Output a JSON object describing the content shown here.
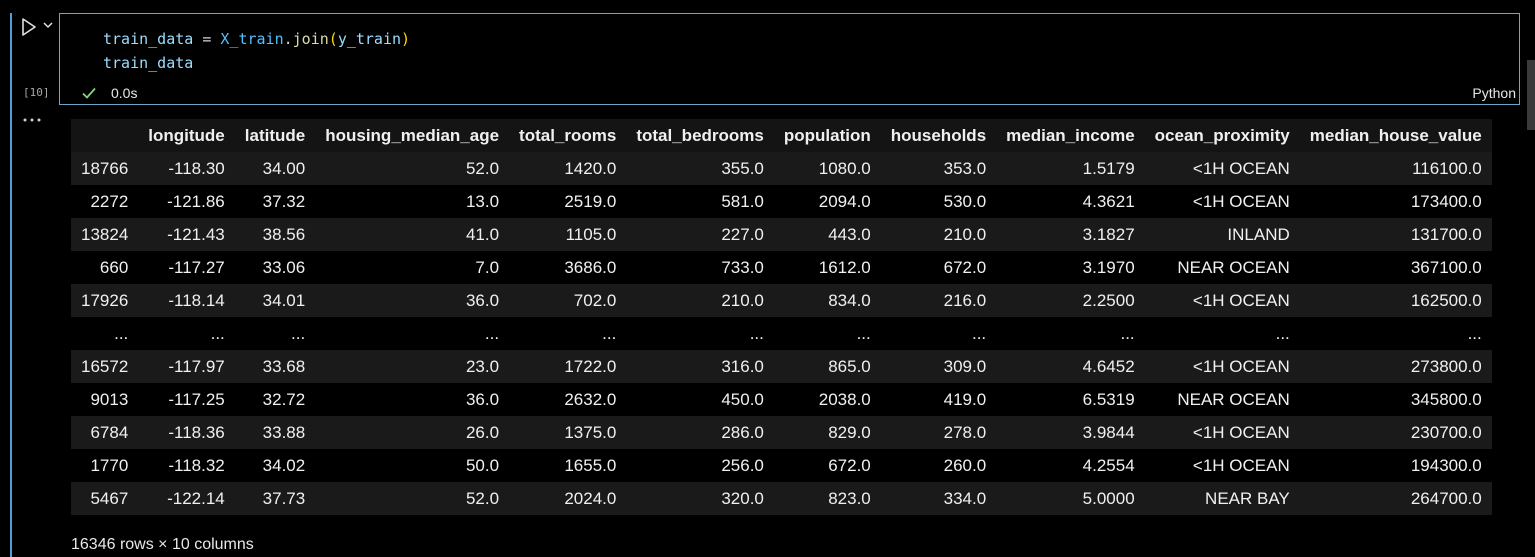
{
  "cell": {
    "execution_count": "[10]",
    "code_line1": {
      "var": "train_data",
      "op": " = ",
      "obj": "X_train",
      "dot": ".",
      "fn": "join",
      "open": "(",
      "arg": "y_train",
      "close": ")"
    },
    "code_line2": "train_data",
    "exec_time": "0.0s",
    "language": "Python"
  },
  "colors": {
    "focus": "#4f9fd8",
    "success": "#89d185",
    "cell_border": "#6aa7c8"
  },
  "icons": {
    "run": "play-icon",
    "run_menu": "chevron-down-icon",
    "status": "check-icon",
    "output_menu": "more-icon"
  },
  "table": {
    "columns": [
      "",
      "longitude",
      "latitude",
      "housing_median_age",
      "total_rooms",
      "total_bedrooms",
      "population",
      "households",
      "median_income",
      "ocean_proximity",
      "median_house_value"
    ],
    "rows": [
      [
        "18766",
        "-118.30",
        "34.00",
        "52.0",
        "1420.0",
        "355.0",
        "1080.0",
        "353.0",
        "1.5179",
        "<1H OCEAN",
        "116100.0"
      ],
      [
        "2272",
        "-121.86",
        "37.32",
        "13.0",
        "2519.0",
        "581.0",
        "2094.0",
        "530.0",
        "4.3621",
        "<1H OCEAN",
        "173400.0"
      ],
      [
        "13824",
        "-121.43",
        "38.56",
        "41.0",
        "1105.0",
        "227.0",
        "443.0",
        "210.0",
        "3.1827",
        "INLAND",
        "131700.0"
      ],
      [
        "660",
        "-117.27",
        "33.06",
        "7.0",
        "3686.0",
        "733.0",
        "1612.0",
        "672.0",
        "3.1970",
        "NEAR OCEAN",
        "367100.0"
      ],
      [
        "17926",
        "-118.14",
        "34.01",
        "36.0",
        "702.0",
        "210.0",
        "834.0",
        "216.0",
        "2.2500",
        "<1H OCEAN",
        "162500.0"
      ],
      [
        "...",
        "...",
        "...",
        "...",
        "...",
        "...",
        "...",
        "...",
        "...",
        "...",
        "..."
      ],
      [
        "16572",
        "-117.97",
        "33.68",
        "23.0",
        "1722.0",
        "316.0",
        "865.0",
        "309.0",
        "4.6452",
        "<1H OCEAN",
        "273800.0"
      ],
      [
        "9013",
        "-117.25",
        "32.72",
        "36.0",
        "2632.0",
        "450.0",
        "2038.0",
        "419.0",
        "6.5319",
        "NEAR OCEAN",
        "345800.0"
      ],
      [
        "6784",
        "-118.36",
        "33.88",
        "26.0",
        "1375.0",
        "286.0",
        "829.0",
        "278.0",
        "3.9844",
        "<1H OCEAN",
        "230700.0"
      ],
      [
        "1770",
        "-118.32",
        "34.02",
        "50.0",
        "1655.0",
        "256.0",
        "672.0",
        "260.0",
        "4.2554",
        "<1H OCEAN",
        "194300.0"
      ],
      [
        "5467",
        "-122.14",
        "37.73",
        "52.0",
        "2024.0",
        "320.0",
        "823.0",
        "334.0",
        "5.0000",
        "NEAR BAY",
        "264700.0"
      ]
    ],
    "footer": "16346 rows × 10 columns"
  }
}
